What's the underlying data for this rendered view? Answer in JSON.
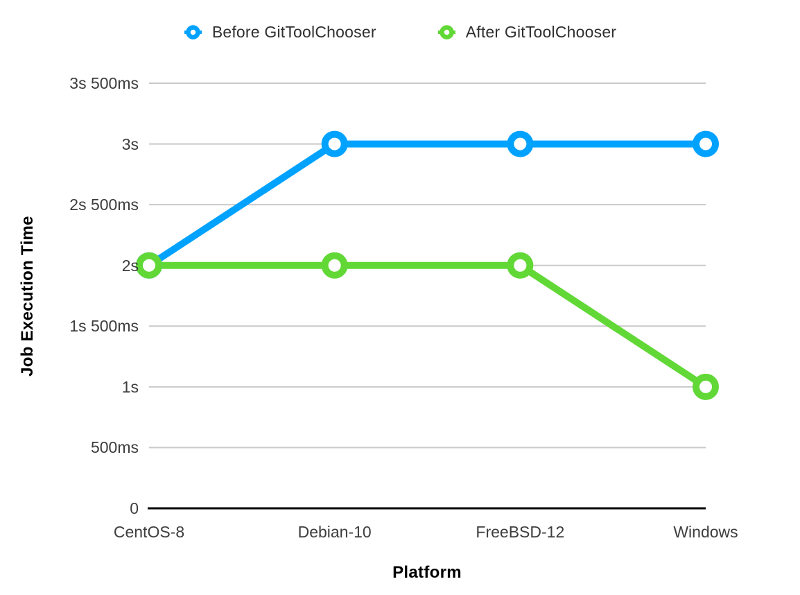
{
  "chart_data": {
    "type": "line",
    "title": "",
    "xlabel": "Platform",
    "ylabel": "Job Execution Time",
    "categories": [
      "CentOS-8",
      "Debian-10",
      "FreeBSD-12",
      "Windows"
    ],
    "series": [
      {
        "name": "Before GitToolChooser",
        "color": "#00A2FF",
        "values_ms": [
          2000,
          3000,
          3000,
          3000
        ]
      },
      {
        "name": "After GitToolChooser",
        "color": "#61D836",
        "values_ms": [
          2000,
          2000,
          2000,
          1000
        ]
      }
    ],
    "y_ticks": [
      {
        "value_ms": 0,
        "label": "0"
      },
      {
        "value_ms": 500,
        "label": "500ms"
      },
      {
        "value_ms": 1000,
        "label": "1s"
      },
      {
        "value_ms": 1500,
        "label": "1s 500ms"
      },
      {
        "value_ms": 2000,
        "label": "2s"
      },
      {
        "value_ms": 2500,
        "label": "2s 500ms"
      },
      {
        "value_ms": 3000,
        "label": "3s"
      },
      {
        "value_ms": 3500,
        "label": "3s 500ms"
      }
    ],
    "ylim_ms": [
      0,
      3500
    ],
    "grid": true,
    "legend_position": "top",
    "style": {
      "gridline_color": "#C9C9C9",
      "axis_color": "#000000",
      "tick_text_color": "#3D3D3D",
      "marker": "ring",
      "line_width": 10
    }
  }
}
